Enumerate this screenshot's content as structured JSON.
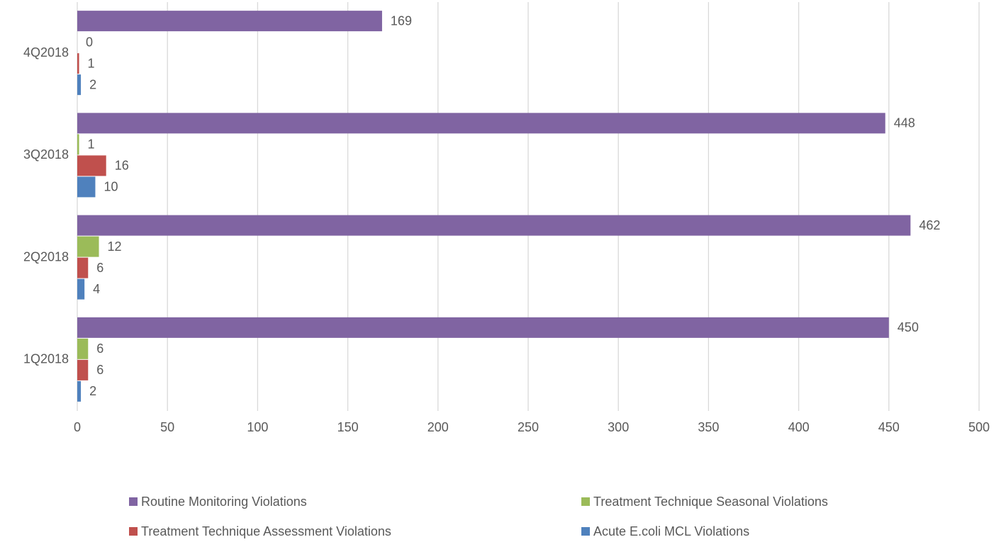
{
  "chart_data": {
    "type": "bar",
    "orientation": "horizontal",
    "categories": [
      "1Q2018",
      "2Q2018",
      "3Q2018",
      "4Q2018"
    ],
    "series": [
      {
        "name": "Routine Monitoring Violations",
        "color": "#8064a2",
        "values": [
          450,
          462,
          448,
          169
        ]
      },
      {
        "name": "Treatment Technique Seasonal Violations",
        "color": "#9bbb59",
        "values": [
          6,
          12,
          1,
          0
        ]
      },
      {
        "name": "Treatment Technique Assessment Violations",
        "color": "#c0504d",
        "values": [
          6,
          6,
          16,
          1
        ]
      },
      {
        "name": "Acute E.coli MCL Violations",
        "color": "#4f81bd",
        "values": [
          2,
          4,
          10,
          2
        ]
      }
    ],
    "xlim": [
      0,
      500
    ],
    "xticks": [
      0,
      50,
      100,
      150,
      200,
      250,
      300,
      350,
      400,
      450,
      500
    ],
    "grid": true,
    "legend": "bottom",
    "data_labels": true
  }
}
